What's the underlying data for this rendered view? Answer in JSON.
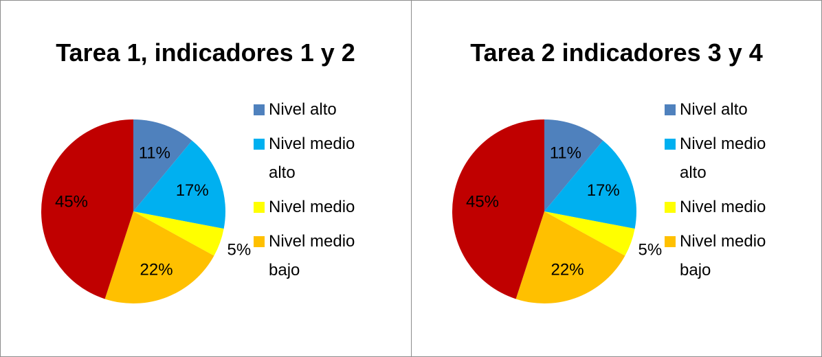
{
  "chart_data": [
    {
      "type": "pie",
      "title": "Tarea 1, indicadores 1 y 2",
      "categories": [
        "Nivel alto",
        "Nivel medio alto",
        "Nivel medio",
        "Nivel medio bajo",
        null
      ],
      "values": [
        11,
        17,
        5,
        22,
        45
      ],
      "value_labels": [
        "11%",
        "17%",
        "5%",
        "22%",
        "45%"
      ],
      "colors": [
        "#4f81bd",
        "#00b0f0",
        "#ffff00",
        "#ffc000",
        "#c00000"
      ],
      "legend": "right"
    },
    {
      "type": "pie",
      "title": "Tarea 2 indicadores 3 y 4",
      "categories": [
        "Nivel alto",
        "Nivel medio alto",
        "Nivel medio",
        "Nivel medio bajo",
        null
      ],
      "values": [
        11,
        17,
        5,
        22,
        45
      ],
      "value_labels": [
        "11%",
        "17%",
        "5%",
        "22%",
        "45%"
      ],
      "colors": [
        "#4f81bd",
        "#00b0f0",
        "#ffff00",
        "#ffc000",
        "#c00000"
      ],
      "legend": "right"
    }
  ]
}
